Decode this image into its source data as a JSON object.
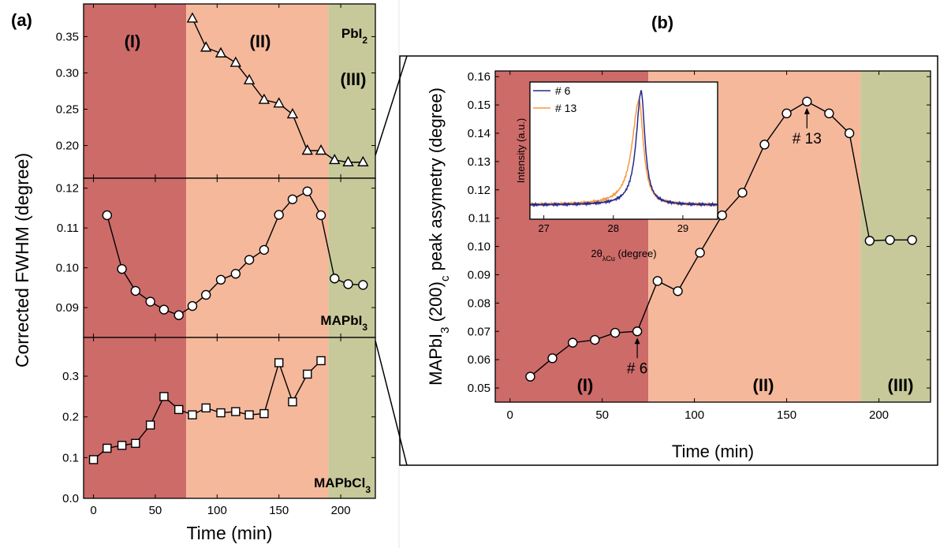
{
  "figure": {
    "panel_a_label": "(a)",
    "panel_b_label": "(b)"
  },
  "colors": {
    "region_I": "#cd6b69",
    "region_II": "#f5b89b",
    "region_III": "#c7c99a",
    "line": "#000000",
    "inset_6": "#28288c",
    "inset_13": "#f59a3c"
  },
  "chart_data": [
    {
      "id": "a",
      "type": "scatter",
      "ylabel": "Corrected FWHM (degree)",
      "xlabel": "Time (min)",
      "xlim": [
        -8,
        228
      ],
      "xticks": [
        0,
        50,
        100,
        150,
        200
      ],
      "regions": [
        {
          "label": "(I)",
          "from": -8,
          "to": 75
        },
        {
          "label": "(II)",
          "from": 75,
          "to": 190
        },
        {
          "label": "(III)",
          "from": 190,
          "to": 228
        }
      ],
      "subplots": [
        {
          "id": "pbi2",
          "compound": "PbI",
          "compound_sub": "2",
          "ylim": [
            0.155,
            0.395
          ],
          "yticks": [
            0.2,
            0.25,
            0.3,
            0.35
          ],
          "ytick_labels": [
            "0.20",
            "0.25",
            "0.30",
            "0.35"
          ],
          "marker": "triangle",
          "x": [
            80,
            91,
            103,
            115,
            126,
            138,
            150,
            161,
            173,
            184,
            195,
            206,
            218
          ],
          "y": [
            0.375,
            0.335,
            0.327,
            0.314,
            0.29,
            0.263,
            0.258,
            0.243,
            0.193,
            0.193,
            0.18,
            0.177,
            0.177
          ]
        },
        {
          "id": "mapbi3",
          "compound": "MAPbI",
          "compound_sub": "3",
          "ylim": [
            0.0825,
            0.1225
          ],
          "yticks": [
            0.09,
            0.1,
            0.11,
            0.12
          ],
          "ytick_labels": [
            "0.09",
            "0.10",
            "0.11",
            "0.12"
          ],
          "marker": "circle",
          "x": [
            11,
            23,
            34,
            46,
            57,
            69,
            80,
            91,
            103,
            115,
            126,
            138,
            150,
            161,
            173,
            184,
            195,
            206,
            218
          ],
          "y": [
            0.1132,
            0.0997,
            0.0942,
            0.0915,
            0.0895,
            0.0881,
            0.0904,
            0.0932,
            0.097,
            0.0985,
            0.102,
            0.1045,
            0.1133,
            0.1172,
            0.1192,
            0.1132,
            0.0973,
            0.0959,
            0.0957
          ]
        },
        {
          "id": "mapbcl3",
          "compound": "MAPbCl",
          "compound_sub": "3",
          "ylim": [
            0.0,
            0.395
          ],
          "yticks": [
            0.0,
            0.1,
            0.2,
            0.3
          ],
          "ytick_labels": [
            "0.0",
            "0.1",
            "0.2",
            "0.3"
          ],
          "marker": "square",
          "x": [
            0,
            11,
            23,
            34,
            46,
            57,
            69,
            80,
            91,
            103,
            115,
            126,
            138,
            150,
            161,
            173,
            184
          ],
          "y": [
            0.095,
            0.123,
            0.13,
            0.135,
            0.18,
            0.25,
            0.218,
            0.205,
            0.222,
            0.21,
            0.213,
            0.205,
            0.208,
            0.333,
            0.237,
            0.305,
            0.338
          ]
        }
      ]
    },
    {
      "id": "b",
      "type": "scatter",
      "ylabel": "MAPbI",
      "ylabel_sub": "3",
      "ylabel_mid": " (200)",
      "ylabel_sub2": "c",
      "ylabel_tail": " peak asymetry (degree)",
      "xlabel": "Time (min)",
      "xlim": [
        -8,
        228
      ],
      "ylim": [
        0.045,
        0.162
      ],
      "xticks": [
        0,
        50,
        100,
        150,
        200
      ],
      "yticks": [
        0.05,
        0.06,
        0.07,
        0.08,
        0.09,
        0.1,
        0.11,
        0.12,
        0.13,
        0.14,
        0.15,
        0.16
      ],
      "ytick_labels": [
        "0.05",
        "0.06",
        "0.07",
        "0.08",
        "0.09",
        "0.10",
        "0.11",
        "0.12",
        "0.13",
        "0.14",
        "0.15",
        "0.16"
      ],
      "regions": [
        {
          "label": "(I)",
          "from": -8,
          "to": 75
        },
        {
          "label": "(II)",
          "from": 75,
          "to": 190
        },
        {
          "label": "(III)",
          "from": 190,
          "to": 228
        }
      ],
      "marker": "circle",
      "x": [
        11,
        23,
        34,
        46,
        57,
        69,
        80,
        91,
        103,
        115,
        126,
        138,
        150,
        161,
        173,
        184,
        195,
        206,
        218
      ],
      "y": [
        0.054,
        0.0605,
        0.066,
        0.067,
        0.0695,
        0.07,
        0.0878,
        0.0842,
        0.0978,
        0.111,
        0.119,
        0.136,
        0.147,
        0.1512,
        0.147,
        0.14,
        0.102,
        0.1023,
        0.1023
      ],
      "annotations": [
        {
          "text": "# 6",
          "x": 69,
          "y": 0.07,
          "position": "below"
        },
        {
          "text": "# 13",
          "x": 161,
          "y": 0.1512,
          "position": "below"
        }
      ],
      "inset": {
        "type": "line",
        "xlabel": "2θ",
        "xlabel_sub": "λCu",
        "xlabel_tail": " (degree)",
        "ylabel": "Intensity (a.u.)",
        "xlim": [
          26.8,
          29.5
        ],
        "ylim": [
          0,
          1.08
        ],
        "xticks": [
          27,
          28,
          29
        ],
        "legend": [
          "# 6",
          "# 13"
        ],
        "legend_position": "top-left",
        "series": [
          {
            "name": "# 6",
            "center": 28.4,
            "sigma_left": 0.085,
            "sigma_right": 0.065,
            "peak": 1.0
          },
          {
            "name": "# 13",
            "center": 28.37,
            "sigma_left": 0.12,
            "sigma_right": 0.075,
            "peak": 0.92
          }
        ]
      }
    }
  ]
}
